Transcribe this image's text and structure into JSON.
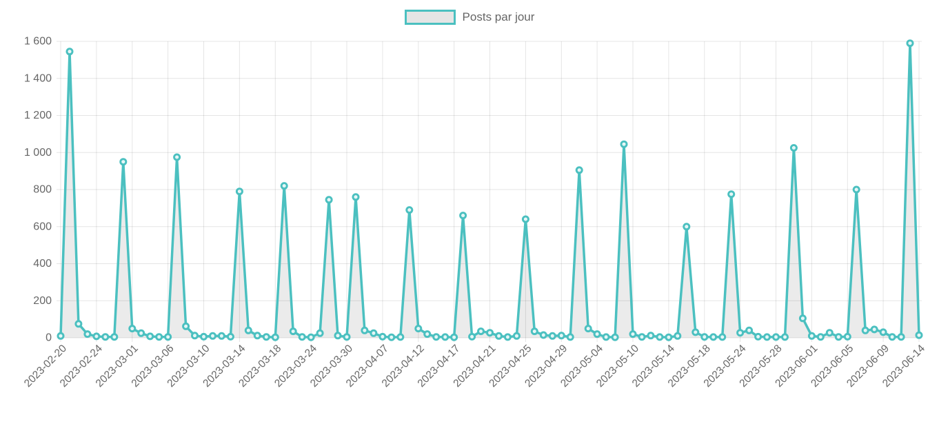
{
  "legend": {
    "label": "Posts par jour"
  },
  "colors": {
    "line": "#4bc0c0",
    "area_fill": "rgba(0,0,0,0.08)",
    "point_fill": "rgba(255,255,255,0.85)",
    "grid": "rgba(0,0,0,0.1)",
    "tick_text": "#666666",
    "legend_box_fill": "#e5e5e5"
  },
  "chart_data": {
    "type": "line",
    "title": "Posts par jour",
    "legend_position": "top-center",
    "grid": true,
    "area_fill": true,
    "point_markers": true,
    "ylim": [
      0,
      1600
    ],
    "y_ticks": [
      0,
      200,
      400,
      600,
      800,
      1000,
      1200,
      1400,
      1600
    ],
    "y_tick_labels": [
      "0",
      "200",
      "400",
      "600",
      "800",
      "1 000",
      "1 200",
      "1 400",
      "1 600"
    ],
    "x_tick_every": 4,
    "x_tick_labels": [
      "2023-02-20",
      "2023-02-24",
      "2023-03-01",
      "2023-03-06",
      "2023-03-10",
      "2023-03-14",
      "2023-03-18",
      "2023-03-24",
      "2023-03-30",
      "2023-04-07",
      "2023-04-12",
      "2023-04-17",
      "2023-04-21",
      "2023-04-25",
      "2023-04-29",
      "2023-05-04",
      "2023-05-10",
      "2023-05-14",
      "2023-05-18",
      "2023-05-24",
      "2023-05-28",
      "2023-06-01",
      "2023-06-05",
      "2023-06-09",
      "2023-06-14"
    ],
    "x": [
      "2023-02-20",
      "2023-02-21",
      "2023-02-22",
      "2023-02-23",
      "2023-02-24",
      "2023-02-25",
      "2023-02-27",
      "2023-02-28",
      "2023-03-01",
      "2023-03-02",
      "2023-03-03",
      "2023-03-04",
      "2023-03-06",
      "2023-03-07",
      "2023-03-08",
      "2023-03-09",
      "2023-03-10",
      "2023-03-11",
      "2023-03-12",
      "2023-03-13",
      "2023-03-14",
      "2023-03-15",
      "2023-03-16",
      "2023-03-17",
      "2023-03-18",
      "2023-03-21",
      "2023-03-22",
      "2023-03-23",
      "2023-03-24",
      "2023-03-27",
      "2023-03-28",
      "2023-03-29",
      "2023-03-30",
      "2023-04-04",
      "2023-04-05",
      "2023-04-06",
      "2023-04-07",
      "2023-04-08",
      "2023-04-10",
      "2023-04-11",
      "2023-04-12",
      "2023-04-13",
      "2023-04-14",
      "2023-04-15",
      "2023-04-17",
      "2023-04-18",
      "2023-04-19",
      "2023-04-20",
      "2023-04-21",
      "2023-04-22",
      "2023-04-23",
      "2023-04-24",
      "2023-04-25",
      "2023-04-26",
      "2023-04-27",
      "2023-04-28",
      "2023-04-29",
      "2023-05-01",
      "2023-05-02",
      "2023-05-03",
      "2023-05-04",
      "2023-05-05",
      "2023-05-08",
      "2023-05-09",
      "2023-05-10",
      "2023-05-11",
      "2023-05-12",
      "2023-05-13",
      "2023-05-14",
      "2023-05-15",
      "2023-05-16",
      "2023-05-17",
      "2023-05-18",
      "2023-05-19",
      "2023-05-22",
      "2023-05-23",
      "2023-05-24",
      "2023-05-25",
      "2023-05-26",
      "2023-05-27",
      "2023-05-28",
      "2023-05-29",
      "2023-05-30",
      "2023-05-31",
      "2023-06-01",
      "2023-06-02",
      "2023-06-03",
      "2023-06-04",
      "2023-06-05",
      "2023-06-06",
      "2023-06-07",
      "2023-06-08",
      "2023-06-09",
      "2023-06-10",
      "2023-06-12",
      "2023-06-13",
      "2023-06-14"
    ],
    "series": [
      {
        "name": "Posts par jour",
        "values": [
          10,
          1545,
          75,
          20,
          8,
          5,
          5,
          950,
          50,
          25,
          8,
          5,
          5,
          975,
          62,
          12,
          6,
          10,
          10,
          6,
          790,
          40,
          12,
          5,
          3,
          820,
          35,
          5,
          3,
          25,
          745,
          12,
          5,
          760,
          40,
          25,
          6,
          3,
          4,
          690,
          50,
          20,
          5,
          4,
          3,
          660,
          6,
          35,
          27,
          10,
          4,
          10,
          640,
          35,
          15,
          10,
          12,
          4,
          905,
          50,
          20,
          4,
          3,
          1045,
          20,
          5,
          12,
          4,
          3,
          10,
          600,
          30,
          5,
          4,
          4,
          775,
          27,
          40,
          6,
          4,
          4,
          4,
          1025,
          105,
          10,
          5,
          27,
          5,
          6,
          800,
          40,
          45,
          30,
          5,
          5,
          1590,
          14
        ]
      }
    ]
  }
}
